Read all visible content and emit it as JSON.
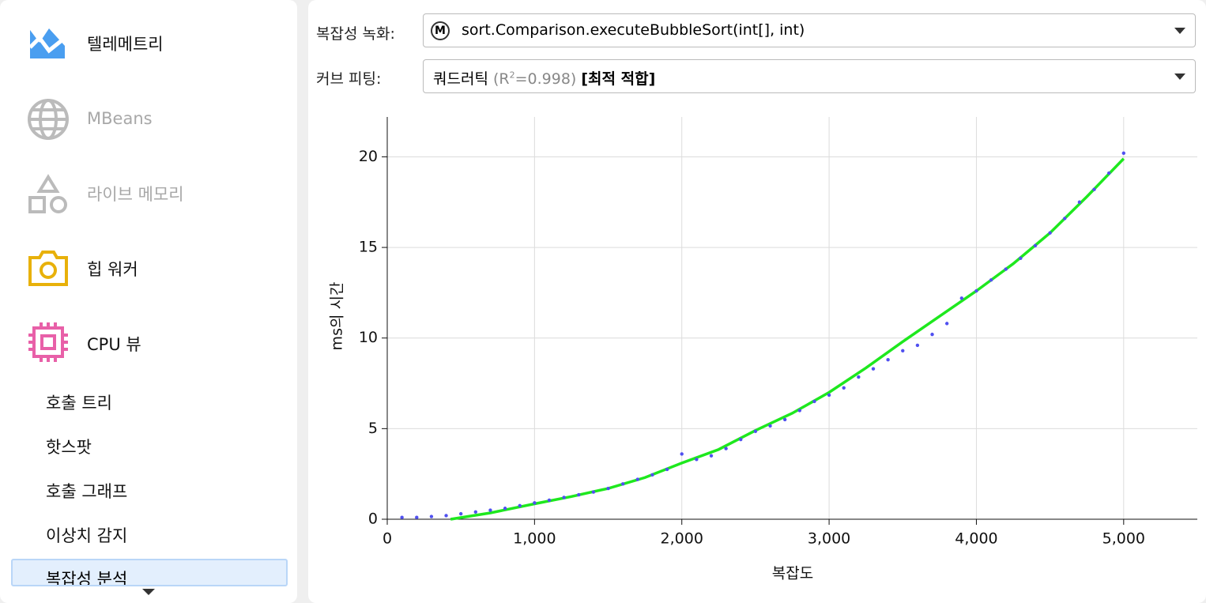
{
  "sidebar": {
    "items": [
      "텔레메트리",
      "MBeans",
      "라이브 메모리",
      "힙 워커",
      "CPU 뷰"
    ],
    "subitems": [
      "호출 트리",
      "핫스팟",
      "호출 그래프",
      "이상치 감지",
      "복잡성 분석"
    ]
  },
  "controls": {
    "recording_label": "복잡성 녹화:",
    "method_badge": "M",
    "recording_value": "sort.Comparison.executeBubbleSort(int[], int)",
    "fit_label": "커브 피팅:",
    "fit_name": "쿼드러틱",
    "fit_r2_prefix": "(R",
    "fit_r2_exp": "2",
    "fit_r2_value": "=0.998)",
    "fit_best": "[최적 적합]"
  },
  "chart_data": {
    "type": "scatter",
    "xlabel": "복잡도",
    "ylabel": "ms의 시간",
    "xlim": [
      0,
      5500
    ],
    "ylim": [
      0,
      22.2
    ],
    "xticks": [
      0,
      {
        "value": 1000,
        "label": "1,000"
      },
      {
        "value": 2000,
        "label": "2,000"
      },
      {
        "value": 3000,
        "label": "3,000"
      },
      {
        "value": 4000,
        "label": "4,000"
      },
      {
        "value": 5000,
        "label": "5,000"
      }
    ],
    "yticks": [
      0,
      5,
      10,
      15,
      20
    ],
    "grid": true,
    "points": {
      "color": "#5050f0",
      "x": [
        100,
        200,
        300,
        400,
        500,
        600,
        700,
        800,
        900,
        1000,
        1100,
        1200,
        1300,
        1400,
        1500,
        1600,
        1700,
        1800,
        1900,
        2000,
        2100,
        2200,
        2300,
        2400,
        2500,
        2600,
        2700,
        2800,
        2900,
        3000,
        3100,
        3200,
        3300,
        3400,
        3500,
        3600,
        3700,
        3800,
        3900,
        4000,
        4100,
        4200,
        4300,
        4400,
        4500,
        4600,
        4700,
        4800,
        4900,
        5000
      ],
      "y": [
        0.1,
        0.1,
        0.15,
        0.2,
        0.3,
        0.4,
        0.5,
        0.6,
        0.75,
        0.9,
        1.05,
        1.2,
        1.35,
        1.5,
        1.7,
        1.95,
        2.2,
        2.45,
        2.75,
        3.6,
        3.3,
        3.5,
        3.9,
        4.4,
        4.85,
        5.15,
        5.5,
        6.0,
        6.5,
        6.85,
        7.25,
        7.85,
        8.3,
        8.8,
        9.3,
        9.6,
        10.2,
        10.8,
        12.2,
        12.6,
        13.2,
        13.8,
        14.4,
        15.1,
        15.8,
        16.6,
        17.5,
        18.2,
        19.1,
        20.2
      ]
    },
    "fit": {
      "color": "#1ee81e",
      "x": [
        430,
        700,
        1000,
        1250,
        1500,
        1750,
        2000,
        2250,
        2500,
        2750,
        3000,
        3250,
        3500,
        3750,
        4000,
        4250,
        4500,
        4750,
        5000
      ],
      "y": [
        0,
        0.35,
        0.85,
        1.25,
        1.7,
        2.3,
        3.1,
        3.85,
        4.9,
        5.85,
        7.0,
        8.35,
        9.8,
        11.2,
        12.6,
        14.1,
        15.8,
        17.8,
        19.9
      ]
    }
  }
}
